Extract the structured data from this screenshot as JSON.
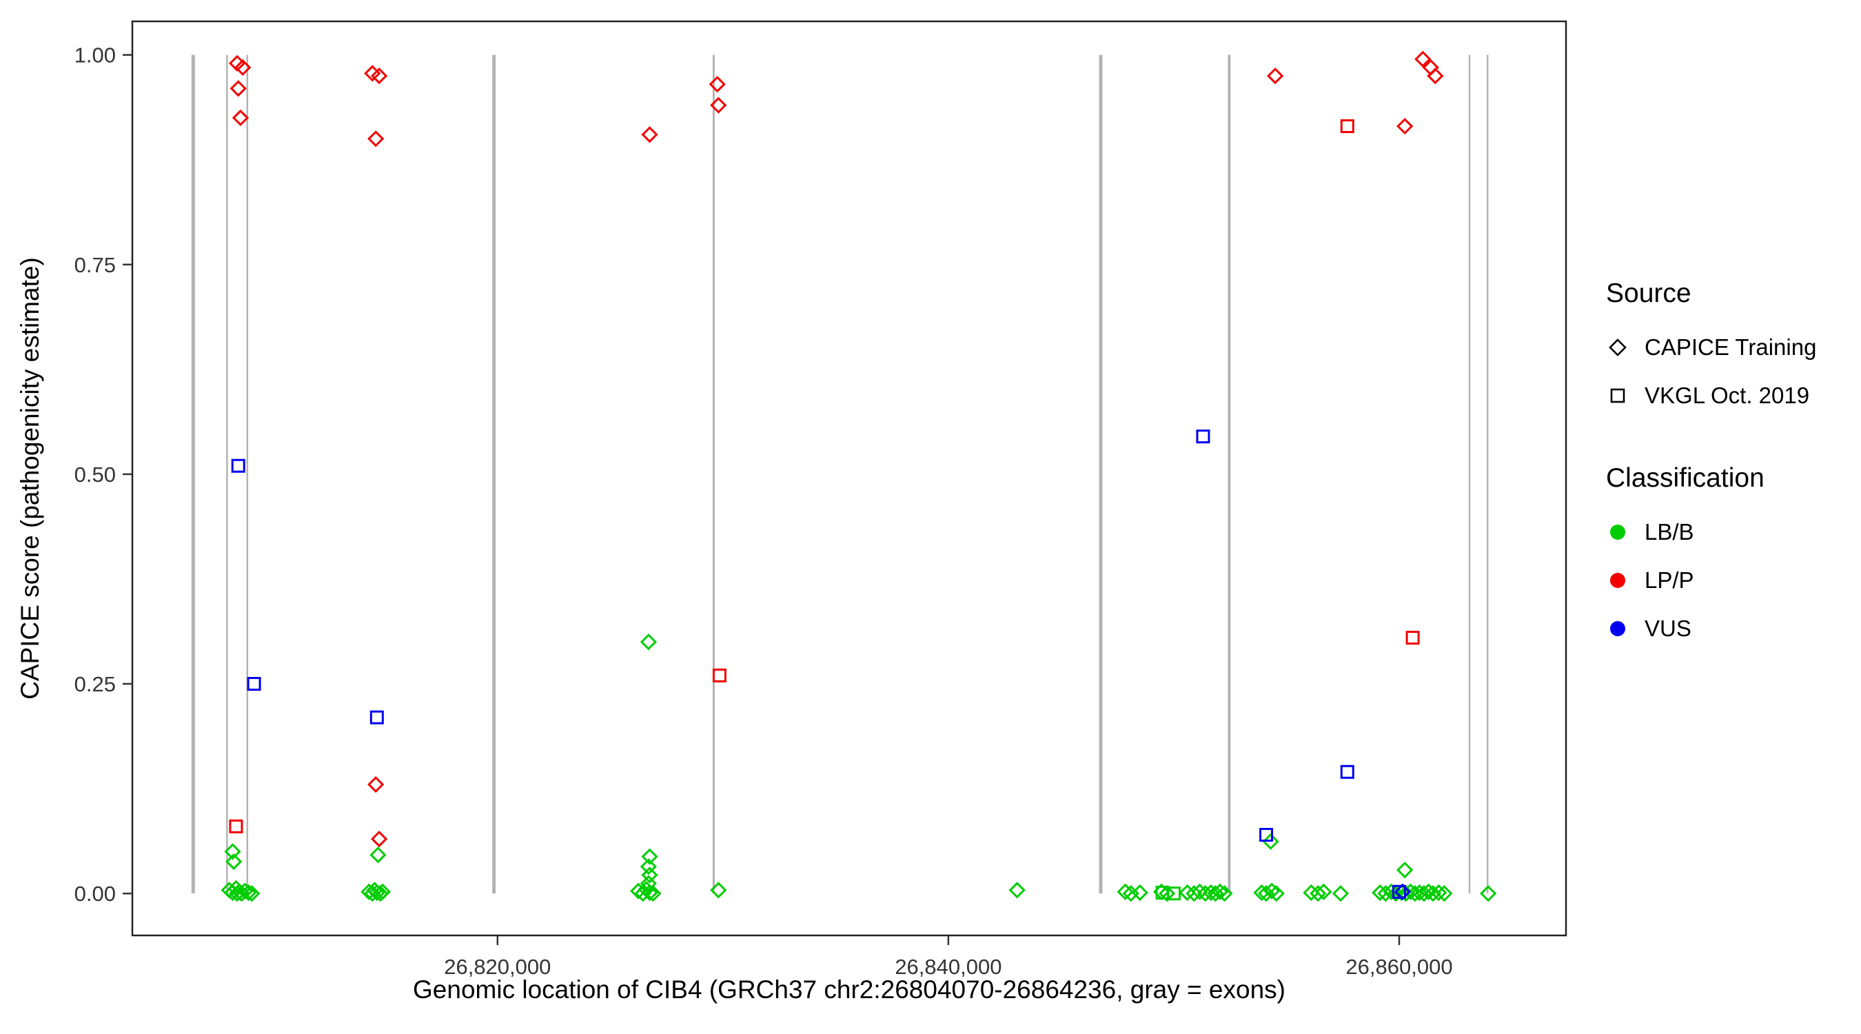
{
  "chart_data": {
    "type": "scatter",
    "title": "",
    "xlabel": "Genomic location of CIB4 (GRCh37 chr2:26804070-26864236, gray = exons)",
    "ylabel": "CAPICE score (pathogenicity estimate)",
    "xlim": [
      26803800,
      26867400
    ],
    "ylim": [
      -0.05,
      1.04
    ],
    "grid": "off",
    "legend_position": "right",
    "axes": {
      "x": {
        "ticks": [
          {
            "value": 26820000,
            "label": "26,820,000"
          },
          {
            "value": 26840000,
            "label": "26,840,000"
          },
          {
            "value": 26860000,
            "label": "26,860,000"
          }
        ]
      },
      "y": {
        "ticks": [
          {
            "value": 0.0,
            "label": "0.00"
          },
          {
            "value": 0.25,
            "label": "0.25"
          },
          {
            "value": 0.5,
            "label": "0.50"
          },
          {
            "value": 0.75,
            "label": "0.75"
          },
          {
            "value": 1.0,
            "label": "1.00"
          }
        ]
      }
    },
    "colors": {
      "classification": {
        "LB/B": "#00CD00",
        "LP/P": "#F20000",
        "VUS": "#0000EE"
      },
      "exon": "#b3b3b3",
      "panel_border": "#222222",
      "tick_text": "#333333"
    },
    "exons": [
      {
        "x": 26806500,
        "w": 5
      },
      {
        "x": 26808000,
        "w": 2.5
      },
      {
        "x": 26808900,
        "w": 2.5
      },
      {
        "x": 26819840,
        "w": 5
      },
      {
        "x": 26829590,
        "w": 3
      },
      {
        "x": 26846760,
        "w": 5
      },
      {
        "x": 26852460,
        "w": 4
      },
      {
        "x": 26863120,
        "w": 2.5
      },
      {
        "x": 26863920,
        "w": 2.5
      }
    ],
    "series": [
      {
        "source": "CAPICE Training",
        "shape": "diamond",
        "classification": "LB/B",
        "points": [
          [
            26808250,
            0.05
          ],
          [
            26808300,
            0.038
          ],
          [
            26808100,
            0.004
          ],
          [
            26808250,
            0.001
          ],
          [
            26808400,
            0.006
          ],
          [
            26808450,
            0.0
          ],
          [
            26808550,
            0.002
          ],
          [
            26808650,
            0.0
          ],
          [
            26808800,
            0.003
          ],
          [
            26808950,
            0.001
          ],
          [
            26809100,
            0.0
          ],
          [
            26814700,
            0.046
          ],
          [
            26814300,
            0.002
          ],
          [
            26814450,
            0.0
          ],
          [
            26814550,
            0.004
          ],
          [
            26814650,
            0.001
          ],
          [
            26814800,
            0.0
          ],
          [
            26814900,
            0.002
          ],
          [
            26826700,
            0.3
          ],
          [
            26826750,
            0.044
          ],
          [
            26826700,
            0.032
          ],
          [
            26826750,
            0.022
          ],
          [
            26826700,
            0.012
          ],
          [
            26826250,
            0.003
          ],
          [
            26826450,
            0.0
          ],
          [
            26826600,
            0.005
          ],
          [
            26826750,
            0.001
          ],
          [
            26826900,
            0.0
          ],
          [
            26829800,
            0.004
          ],
          [
            26843050,
            0.004
          ],
          [
            26847850,
            0.002
          ],
          [
            26848100,
            0.0
          ],
          [
            26848500,
            0.001
          ],
          [
            26849450,
            0.002
          ],
          [
            26849700,
            0.0
          ],
          [
            26850600,
            0.001
          ],
          [
            26850900,
            0.0
          ],
          [
            26851150,
            0.002
          ],
          [
            26851400,
            0.0
          ],
          [
            26851650,
            0.001
          ],
          [
            26851850,
            0.0
          ],
          [
            26852050,
            0.002
          ],
          [
            26852250,
            0.0
          ],
          [
            26854300,
            0.062
          ],
          [
            26853900,
            0.001
          ],
          [
            26854100,
            0.0
          ],
          [
            26854350,
            0.003
          ],
          [
            26854550,
            0.0
          ],
          [
            26856100,
            0.001
          ],
          [
            26856400,
            0.0
          ],
          [
            26856650,
            0.002
          ],
          [
            26857400,
            0.0
          ],
          [
            26860250,
            0.028
          ],
          [
            26859150,
            0.001
          ],
          [
            26859400,
            0.0
          ],
          [
            26859650,
            0.002
          ],
          [
            26859850,
            0.0
          ],
          [
            26860100,
            0.001
          ],
          [
            26860300,
            0.0
          ],
          [
            26860500,
            0.002
          ],
          [
            26860700,
            0.0
          ],
          [
            26860900,
            0.001
          ],
          [
            26861100,
            0.0
          ],
          [
            26861300,
            0.002
          ],
          [
            26861500,
            0.0
          ],
          [
            26861750,
            0.001
          ],
          [
            26862000,
            0.0
          ],
          [
            26863950,
            0.0
          ]
        ]
      },
      {
        "source": "CAPICE Training",
        "shape": "diamond",
        "classification": "LP/P",
        "points": [
          [
            26808450,
            0.99
          ],
          [
            26808700,
            0.985
          ],
          [
            26808500,
            0.96
          ],
          [
            26808600,
            0.925
          ],
          [
            26814450,
            0.978
          ],
          [
            26814750,
            0.975
          ],
          [
            26814600,
            0.9
          ],
          [
            26826750,
            0.905
          ],
          [
            26829750,
            0.965
          ],
          [
            26829800,
            0.94
          ],
          [
            26854500,
            0.975
          ],
          [
            26860250,
            0.915
          ],
          [
            26861050,
            0.995
          ],
          [
            26861400,
            0.985
          ],
          [
            26861600,
            0.975
          ],
          [
            26814600,
            0.13
          ],
          [
            26814750,
            0.065
          ]
        ]
      },
      {
        "source": "CAPICE Training",
        "shape": "diamond",
        "classification": "VUS",
        "points": [
          [
            26860150,
            0.002
          ]
        ]
      },
      {
        "source": "VKGL Oct. 2019",
        "shape": "square",
        "classification": "LB/B",
        "points": [
          [
            26849500,
            0.001
          ],
          [
            26850000,
            0.0
          ]
        ]
      },
      {
        "source": "VKGL Oct. 2019",
        "shape": "square",
        "classification": "LP/P",
        "points": [
          [
            26808400,
            0.08
          ],
          [
            26829850,
            0.26
          ],
          [
            26857700,
            0.915
          ],
          [
            26860600,
            0.305
          ]
        ]
      },
      {
        "source": "VKGL Oct. 2019",
        "shape": "square",
        "classification": "VUS",
        "points": [
          [
            26808500,
            0.51
          ],
          [
            26809200,
            0.25
          ],
          [
            26814650,
            0.21
          ],
          [
            26851300,
            0.545
          ],
          [
            26854100,
            0.07
          ],
          [
            26857700,
            0.145
          ],
          [
            26860000,
            0.002
          ]
        ]
      }
    ]
  },
  "legend": {
    "source": {
      "title": "Source",
      "items": [
        {
          "label": "CAPICE Training",
          "shape": "diamond"
        },
        {
          "label": "VKGL Oct. 2019",
          "shape": "square"
        }
      ]
    },
    "classification": {
      "title": "Classification",
      "items": [
        {
          "label": "LB/B",
          "color": "#00CD00"
        },
        {
          "label": "LP/P",
          "color": "#F20000"
        },
        {
          "label": "VUS",
          "color": "#0000EE"
        }
      ]
    }
  }
}
